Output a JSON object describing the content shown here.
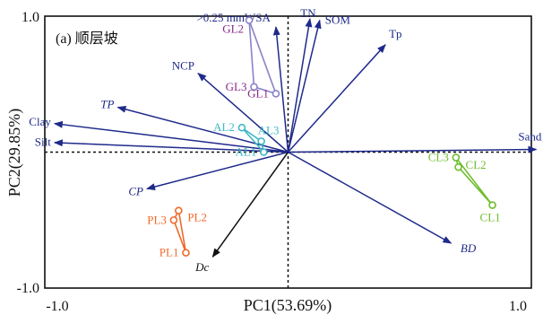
{
  "chart_data": {
    "type": "scatter",
    "subtype": "pca-biplot",
    "title": "(a)  顺层坡",
    "xlabel": "PC1(53.69%)",
    "ylabel": "PC2(29.85%)",
    "xlim": [
      -1.0,
      1.0
    ],
    "ylim": [
      -1.0,
      1.0
    ],
    "x_ticks": [
      "-1.0",
      "1.0"
    ],
    "y_ticks": [
      "1.0",
      "-1.0"
    ],
    "zero_lines": "dashed",
    "vector_color": "#1f2a8a",
    "vectors": [
      {
        "name": ">0.25 mmWSA",
        "x": -0.05,
        "y": 0.92,
        "color": "#1f2a8a",
        "italic": false
      },
      {
        "name": "TN",
        "x": 0.09,
        "y": 0.98,
        "color": "#1f2a8a",
        "italic": false
      },
      {
        "name": "SOM",
        "x": 0.13,
        "y": 0.97,
        "color": "#1f2a8a",
        "italic": false
      },
      {
        "name": "Tp",
        "x": 0.4,
        "y": 0.79,
        "color": "#1f2a8a",
        "italic": false
      },
      {
        "name": "NCP",
        "x": -0.37,
        "y": 0.58,
        "color": "#1f2a8a",
        "italic": false
      },
      {
        "name": "TP",
        "x": -0.7,
        "y": 0.33,
        "color": "#1f2a8a",
        "italic": true
      },
      {
        "name": "Clay",
        "x": -0.96,
        "y": 0.21,
        "color": "#1f2a8a",
        "italic": false
      },
      {
        "name": "Silt",
        "x": -0.96,
        "y": 0.07,
        "color": "#1f2a8a",
        "italic": false
      },
      {
        "name": "Sand",
        "x": 1.02,
        "y": 0.02,
        "color": "#1f2a8a",
        "italic": false
      },
      {
        "name": "CP",
        "x": -0.58,
        "y": -0.27,
        "color": "#1f2a8a",
        "italic": true
      },
      {
        "name": "BD",
        "x": 0.67,
        "y": -0.67,
        "color": "#1f2a8a",
        "italic": true
      },
      {
        "name": "Dc",
        "x": -0.31,
        "y": -0.77,
        "color": "#111111",
        "italic": true
      }
    ],
    "groups": [
      {
        "color": "#8a82c8",
        "label_color": "#8b2a8b",
        "points": [
          {
            "label": "GL2",
            "x": -0.16,
            "y": 0.97
          },
          {
            "label": "GL3",
            "x": -0.14,
            "y": 0.48
          },
          {
            "label": "GL1",
            "x": -0.05,
            "y": 0.43
          }
        ]
      },
      {
        "color": "#3fb7c6",
        "label_color": "#3fb7c6",
        "points": [
          {
            "label": "AL2",
            "x": -0.19,
            "y": 0.18
          },
          {
            "label": "AL3",
            "x": -0.11,
            "y": 0.08
          },
          {
            "label": "AL1",
            "x": -0.1,
            "y": 0.0
          }
        ]
      },
      {
        "color": "#6ebd2c",
        "label_color": "#6ebd2c",
        "points": [
          {
            "label": "CL3",
            "x": 0.69,
            "y": -0.04
          },
          {
            "label": "CL2",
            "x": 0.7,
            "y": -0.11
          },
          {
            "label": "CL1",
            "x": 0.84,
            "y": -0.39
          }
        ]
      },
      {
        "color": "#ef6a2a",
        "label_color": "#ef6a2a",
        "points": [
          {
            "label": "PL2",
            "x": -0.45,
            "y": -0.43
          },
          {
            "label": "PL3",
            "x": -0.47,
            "y": -0.5
          },
          {
            "label": "PL1",
            "x": -0.42,
            "y": -0.74
          }
        ]
      }
    ]
  }
}
